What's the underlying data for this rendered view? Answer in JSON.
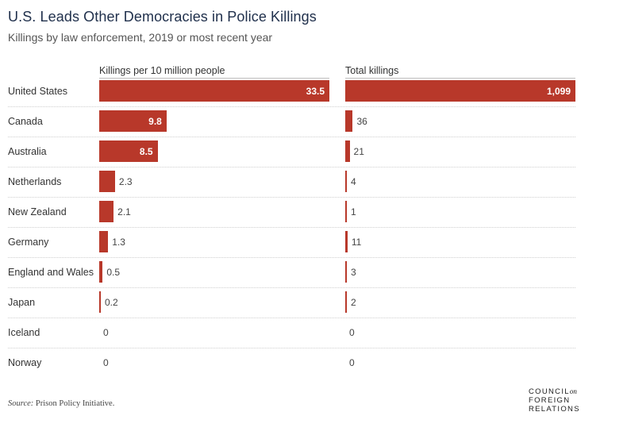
{
  "title": "U.S. Leads Other Democracies in Police Killings",
  "subtitle": "Killings by law enforcement, 2019 or most recent year",
  "source_label": "Source:",
  "source_text": " Prison Policy Initiative.",
  "logo": {
    "line1": "COUNCIL",
    "on": "on",
    "line2": "FOREIGN",
    "line3": "RELATIONS"
  },
  "colors": {
    "bar": "#b8382a",
    "title": "#1f2f4b"
  },
  "chart_data": {
    "type": "bar",
    "orientation": "horizontal",
    "categories": [
      "United States",
      "Canada",
      "Australia",
      "Netherlands",
      "New Zealand",
      "Germany",
      "England and Wales",
      "Japan",
      "Iceland",
      "Norway"
    ],
    "series": [
      {
        "name": "Killings per 10 million people",
        "values": [
          33.5,
          9.8,
          8.5,
          2.3,
          2.1,
          1.3,
          0.5,
          0.2,
          0,
          0
        ],
        "labels": [
          "33.5",
          "9.8",
          "8.5",
          "2.3",
          "2.1",
          "1.3",
          "0.5",
          "0.2",
          "0",
          "0"
        ],
        "xlim": [
          0,
          33.5
        ]
      },
      {
        "name": "Total killings",
        "values": [
          1099,
          36,
          21,
          4,
          1,
          11,
          3,
          2,
          0,
          0
        ],
        "labels": [
          "1,099",
          "36",
          "21",
          "4",
          "1",
          "11",
          "3",
          "2",
          "0",
          "0"
        ],
        "xlim": [
          0,
          1099
        ]
      }
    ]
  }
}
